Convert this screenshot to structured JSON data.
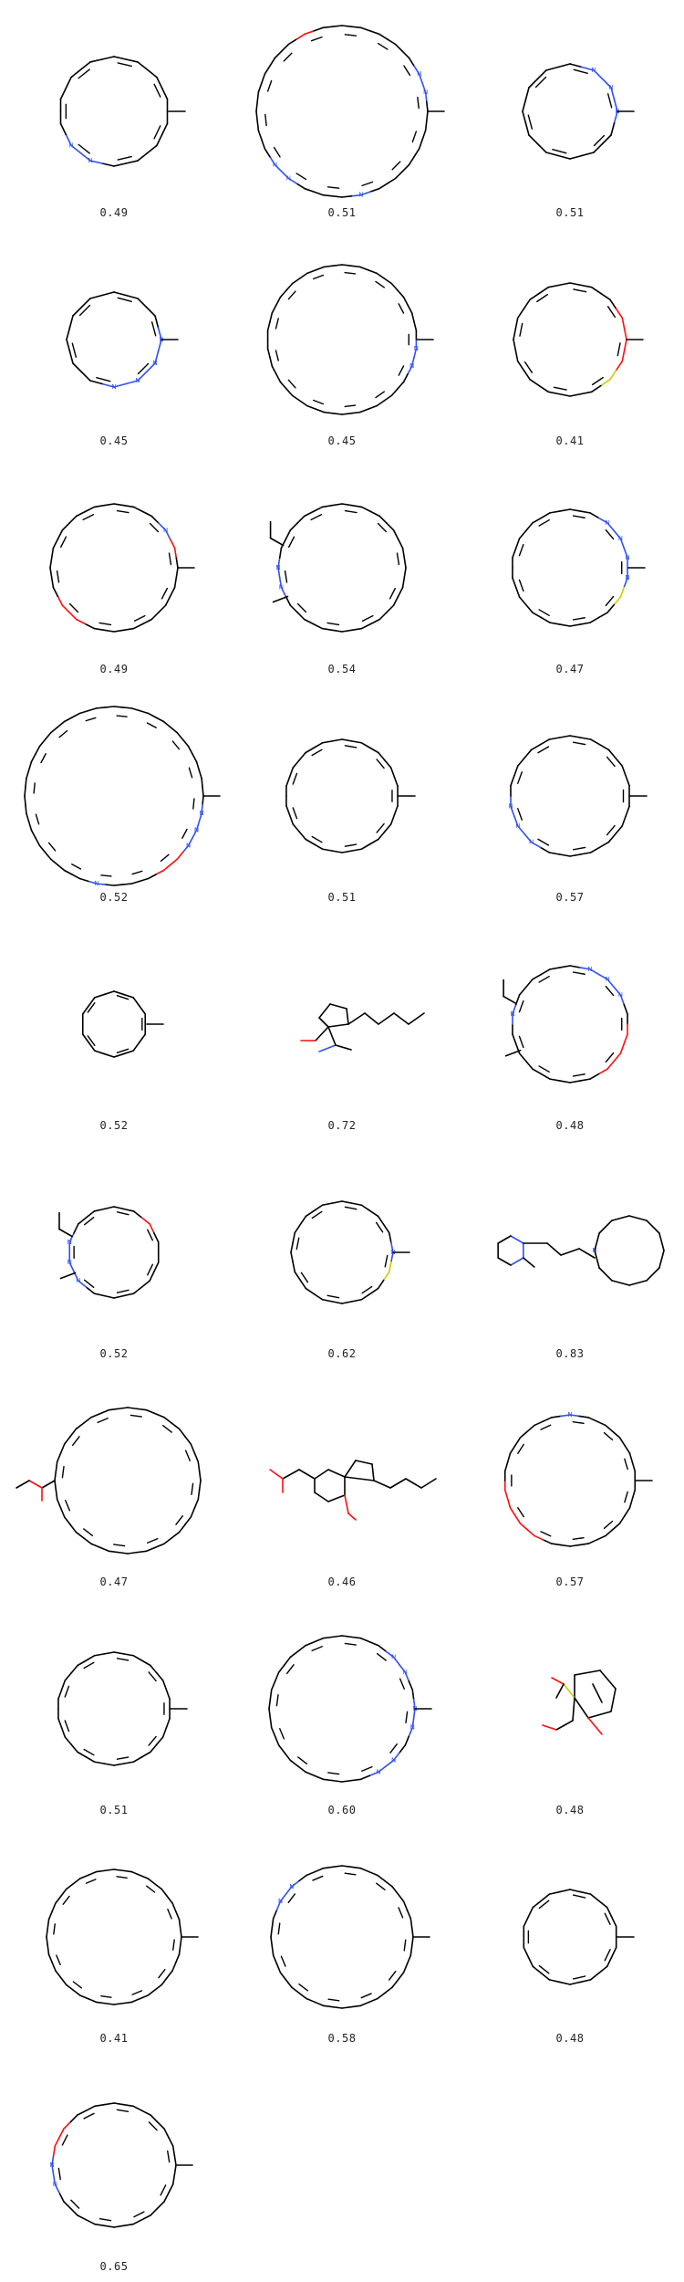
{
  "grid": {
    "molecules": [
      {
        "score": "0.49"
      },
      {
        "score": "0.51"
      },
      {
        "score": "0.51"
      },
      {
        "score": "0.45"
      },
      {
        "score": "0.45"
      },
      {
        "score": "0.41"
      },
      {
        "score": "0.49"
      },
      {
        "score": "0.54"
      },
      {
        "score": "0.47"
      },
      {
        "score": "0.52"
      },
      {
        "score": "0.51"
      },
      {
        "score": "0.57"
      },
      {
        "score": "0.52"
      },
      {
        "score": "0.72"
      },
      {
        "score": "0.48"
      },
      {
        "score": "0.52"
      },
      {
        "score": "0.62"
      },
      {
        "score": "0.83"
      },
      {
        "score": "0.47"
      },
      {
        "score": "0.46"
      },
      {
        "score": "0.57"
      },
      {
        "score": "0.51"
      },
      {
        "score": "0.60"
      },
      {
        "score": "0.48"
      },
      {
        "score": "0.41"
      },
      {
        "score": "0.58"
      },
      {
        "score": "0.48"
      },
      {
        "score": "0.65"
      }
    ]
  },
  "atom_colors": {
    "carbon": "#000000",
    "nitrogen": "#3050F8",
    "oxygen": "#FF0D0D",
    "sulfur": "#CCCC00"
  }
}
